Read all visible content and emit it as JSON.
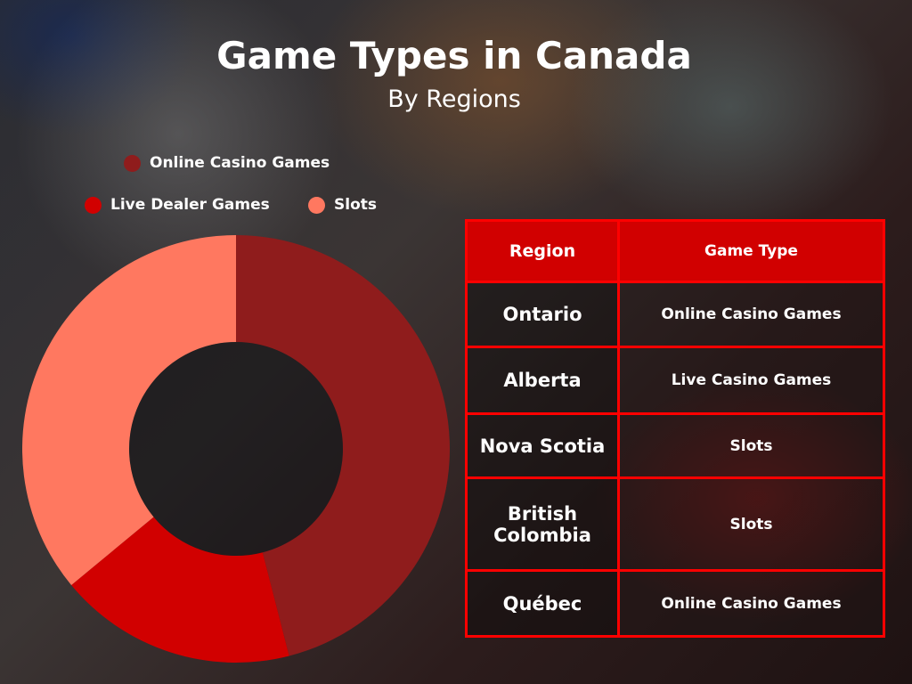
{
  "title": "Game Types in Canada",
  "subtitle": "By Regions",
  "chart_data": {
    "type": "pie",
    "donut": true,
    "title": "Game Types in Canada",
    "subtitle": "By Regions",
    "legend_position": "top",
    "series": [
      {
        "name": "Online Casino Games",
        "value": 46,
        "color": "#8f1c1c"
      },
      {
        "name": "Live Dealer Games",
        "value": 18,
        "color": "#d10000"
      },
      {
        "name": "Slots",
        "value": 36,
        "color": "#ff7860"
      }
    ]
  },
  "table": {
    "headers": [
      "Region",
      "Game Type"
    ],
    "rows": [
      {
        "region": "Ontario",
        "game": "Online Casino Games"
      },
      {
        "region": "Alberta",
        "game": "Live Casino Games"
      },
      {
        "region": "Nova Scotia",
        "game": "Slots"
      },
      {
        "region": "British Colombia",
        "game": "Slots"
      },
      {
        "region": "Québec",
        "game": "Online Casino Games"
      }
    ]
  }
}
